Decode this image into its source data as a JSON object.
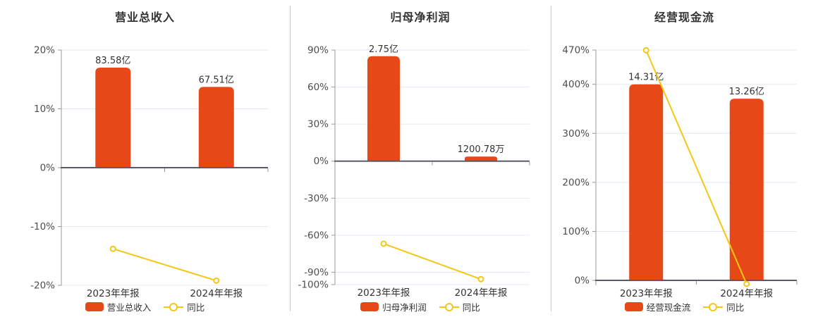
{
  "colors": {
    "bar": "#e64818",
    "line": "#f3c713",
    "grid": "#e4eaf4",
    "axis": "#999999",
    "zero_line": "#585c62",
    "tick_text": "#4d4d4d",
    "text": "#333333",
    "divider": "#c9c9c9",
    "marker_fill": "#ffffff",
    "background": "#ffffff"
  },
  "chart_data": [
    {
      "type": "bar+line",
      "title": "营业总收入",
      "categories": [
        "2023年年报",
        "2024年年报"
      ],
      "series": [
        {
          "name": "营业总收入",
          "kind": "bar",
          "values": [
            83.58,
            67.51
          ],
          "units": [
            "亿",
            "亿"
          ],
          "labels": [
            "83.58亿",
            "67.51亿"
          ],
          "axis_top_pct": [
            17.0,
            13.73
          ]
        },
        {
          "name": "同比",
          "kind": "line",
          "yoy_pct": [
            -13.8,
            -19.2
          ]
        }
      ],
      "y_ticks": [
        20,
        10,
        0,
        -10,
        -20
      ],
      "ylim": [
        -20,
        20
      ],
      "tick_suffix": "%",
      "grid": "horizontal",
      "legend_position": "bottom"
    },
    {
      "type": "bar+line",
      "title": "归母净利润",
      "categories": [
        "2023年年报",
        "2024年年报"
      ],
      "series": [
        {
          "name": "归母净利润",
          "kind": "bar",
          "values": [
            2.75,
            1200.78
          ],
          "units": [
            "亿",
            "万"
          ],
          "labels": [
            "2.75亿",
            "1200.78万"
          ],
          "axis_top_pct": [
            85.0,
            3.71
          ]
        },
        {
          "name": "同比",
          "kind": "line",
          "yoy_pct": [
            -66.9,
            -95.6
          ]
        }
      ],
      "y_ticks": [
        90,
        60,
        30,
        0,
        -30,
        -60,
        -90,
        -100
      ],
      "ylim": [
        -100,
        90
      ],
      "tick_suffix": "%",
      "grid": "horizontal",
      "legend_position": "bottom"
    },
    {
      "type": "bar+line",
      "title": "经营现金流",
      "categories": [
        "2023年年报",
        "2024年年报"
      ],
      "series": [
        {
          "name": "经营现金流",
          "kind": "bar",
          "values": [
            14.31,
            13.26
          ],
          "units": [
            "亿",
            "亿"
          ],
          "labels": [
            "14.31亿",
            "13.26亿"
          ],
          "axis_top_pct": [
            400.0,
            370.6
          ]
        },
        {
          "name": "同比",
          "kind": "line",
          "yoy_pct": [
            469.5,
            -7.3
          ]
        }
      ],
      "y_ticks": [
        470,
        400,
        300,
        200,
        100,
        0
      ],
      "ylim": [
        -10,
        470
      ],
      "tick_suffix": "%",
      "grid": "horizontal",
      "legend_position": "bottom"
    }
  ]
}
